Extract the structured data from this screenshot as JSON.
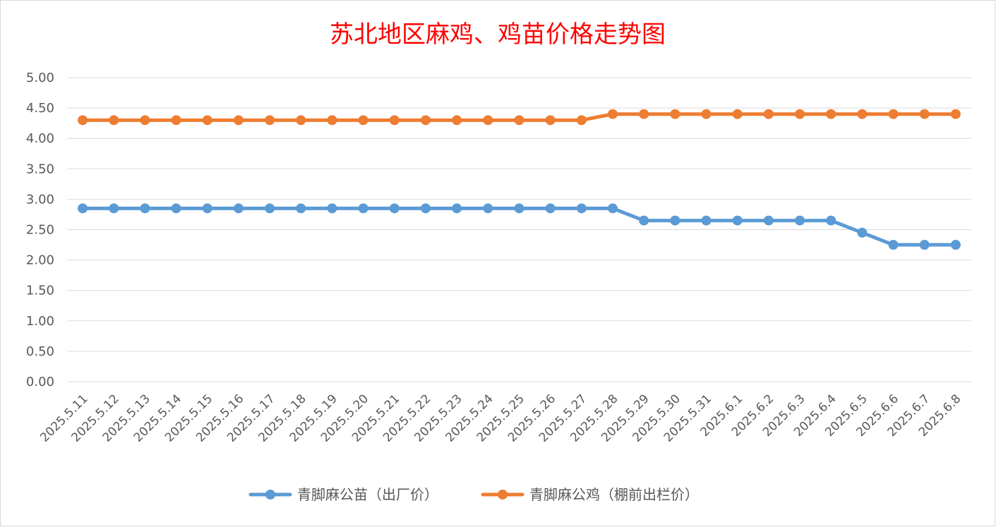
{
  "chart_data": {
    "type": "line",
    "title": "苏北地区麻鸡、鸡苗价格走势图",
    "xlabel": "",
    "ylabel": "",
    "ylim": [
      0,
      5
    ],
    "yticks": [
      "0.00",
      "0.50",
      "1.00",
      "1.50",
      "2.00",
      "2.50",
      "3.00",
      "3.50",
      "4.00",
      "4.50",
      "5.00"
    ],
    "grid": true,
    "legend_position": "bottom",
    "categories": [
      "2025.5.11",
      "2025.5.12",
      "2025.5.13",
      "2025.5.14",
      "2025.5.15",
      "2025.5.16",
      "2025.5.17",
      "2025.5.18",
      "2025.5.19",
      "2025.5.20",
      "2025.5.21",
      "2025.5.22",
      "2025.5.23",
      "2025.5.24",
      "2025.5.25",
      "2025.5.26",
      "2025.5.27",
      "2025.5.28",
      "2025.5.29",
      "2025.5.30",
      "2025.5.31",
      "2025.6.1",
      "2025.6.2",
      "2025.6.3",
      "2025.6.4",
      "2025.6.5",
      "2025.6.6",
      "2025.6.7",
      "2025.6.8"
    ],
    "series": [
      {
        "name": "青脚麻公苗（出厂价）",
        "color": "#5b9bd5",
        "values": [
          2.85,
          2.85,
          2.85,
          2.85,
          2.85,
          2.85,
          2.85,
          2.85,
          2.85,
          2.85,
          2.85,
          2.85,
          2.85,
          2.85,
          2.85,
          2.85,
          2.85,
          2.85,
          2.65,
          2.65,
          2.65,
          2.65,
          2.65,
          2.65,
          2.65,
          2.45,
          2.25,
          2.25,
          2.25
        ]
      },
      {
        "name": "青脚麻公鸡（棚前出栏价）",
        "color": "#ed7d31",
        "values": [
          4.3,
          4.3,
          4.3,
          4.3,
          4.3,
          4.3,
          4.3,
          4.3,
          4.3,
          4.3,
          4.3,
          4.3,
          4.3,
          4.3,
          4.3,
          4.3,
          4.3,
          4.4,
          4.4,
          4.4,
          4.4,
          4.4,
          4.4,
          4.4,
          4.4,
          4.4,
          4.4,
          4.4,
          4.4
        ]
      }
    ]
  }
}
